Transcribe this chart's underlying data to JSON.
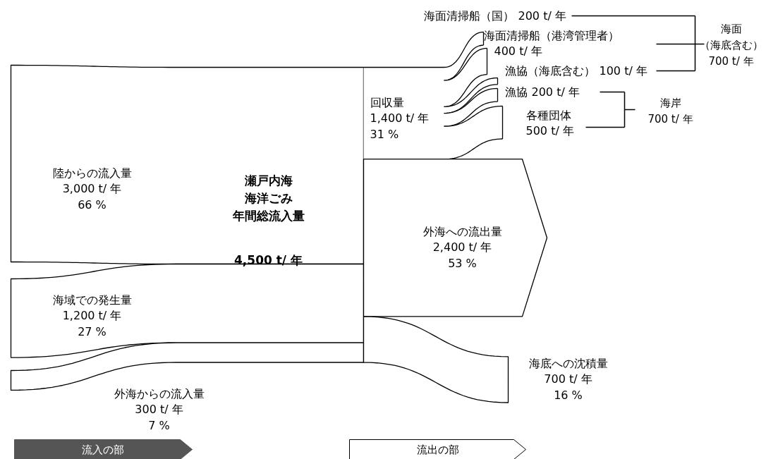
{
  "chart_data": {
    "type": "other",
    "title": "瀬戸内海",
    "subtitle": "4,500 t/ 年",
    "categories": [
      "陸からの流入量",
      "海域での発生量",
      "外海からの流入量",
      "回収量",
      "外海への流出量",
      "海底への沈積量",
      "海面清掃船（国）",
      "海面清掃船（港湾管理者）",
      "漁協（海底含む）",
      "漁協",
      "各種団体"
    ],
    "values": [
      3000,
      1200,
      300,
      1400,
      2400,
      700,
      200,
      400,
      100,
      200,
      500
    ],
    "value_labels": [
      "3,000 t/ 年\n66 %",
      "1,200 t/ 年\n27 %",
      "300 t/ 年\n7 %",
      "1,400 t/ 年\n31 %",
      "2,400 t/ 年\n53 %",
      "700 t/ 年\n16 %",
      "200 t/ 年",
      "400 t/ 年",
      "100 t/ 年",
      "200 t/ 年",
      "500 t/ 年"
    ],
    "annotations": [
      "海面",
      "（海底含む）",
      "700 t/ 年",
      "海岸",
      "700 t/ 年",
      "流入の部",
      "流出の部",
      "海洋ごみ",
      "年間総流入量"
    ]
  }
}
